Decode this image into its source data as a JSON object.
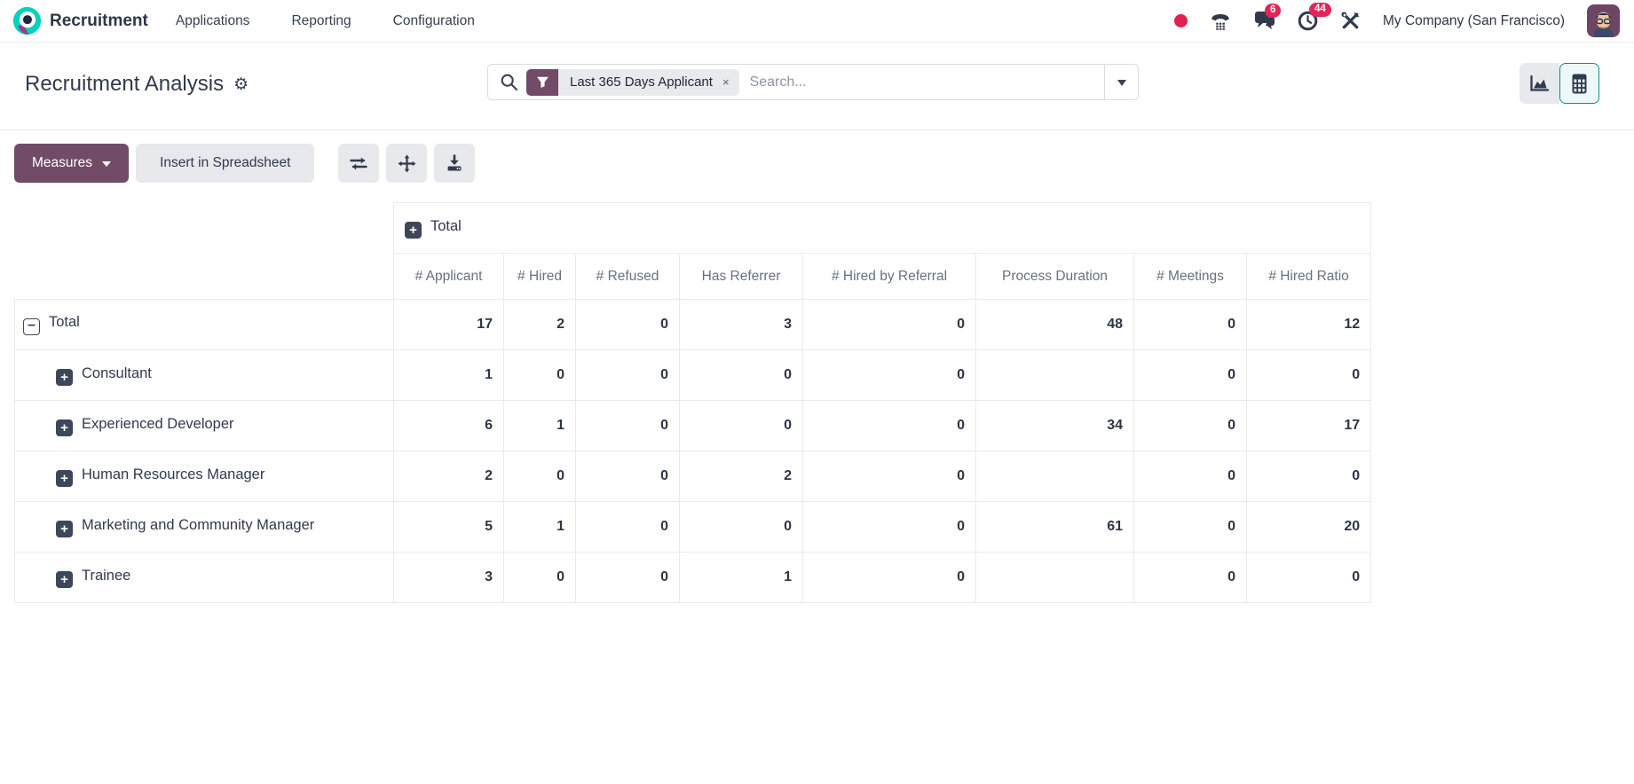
{
  "navbar": {
    "app_name": "Recruitment",
    "menu_items": [
      "Applications",
      "Reporting",
      "Configuration"
    ],
    "systray": {
      "icons": [
        "record-dot",
        "phone-icon",
        "chat-icon",
        "clock-activity-icon",
        "tools-icon"
      ],
      "chat_badge": "6",
      "activity_badge": "44",
      "company": "My Company (San Francisco)",
      "avatar": "user-avatar"
    }
  },
  "control_panel": {
    "title": "Recruitment Analysis",
    "title_icon": "settings-gear-icon",
    "search": {
      "icon": "search-icon",
      "facet_icon": "filter-funnel-icon",
      "facet_label": "Last 365 Days Applicant",
      "facet_remove": "×",
      "placeholder": "Search...",
      "expand_icon": "chevron-down-icon"
    },
    "view_switcher": [
      {
        "name": "graph-view",
        "icon": "area-chart-icon",
        "active": false
      },
      {
        "name": "pivot-view",
        "icon": "pivot-grid-icon",
        "active": true
      }
    ]
  },
  "toolbar": {
    "measures_label": "Measures",
    "insert_label": "Insert in Spreadsheet",
    "icon_buttons": [
      "flip-axis-icon",
      "expand-all-icon",
      "download-icon"
    ]
  },
  "pivot": {
    "col_group_header": "Total",
    "columns": [
      "# Applicant",
      "# Hired",
      "# Refused",
      "Has Referrer",
      "# Hired by Referral",
      "Process Duration",
      "# Meetings",
      "# Hired Ratio"
    ],
    "rows": [
      {
        "label": "Total",
        "level": 0,
        "expanded": true,
        "values": [
          "17",
          "2",
          "0",
          "3",
          "0",
          "48",
          "0",
          "12"
        ]
      },
      {
        "label": "Consultant",
        "level": 1,
        "expanded": false,
        "values": [
          "1",
          "0",
          "0",
          "0",
          "0",
          "",
          "0",
          "0"
        ]
      },
      {
        "label": "Experienced Developer",
        "level": 1,
        "expanded": false,
        "values": [
          "6",
          "1",
          "0",
          "0",
          "0",
          "34",
          "0",
          "17"
        ]
      },
      {
        "label": "Human Resources Manager",
        "level": 1,
        "expanded": false,
        "values": [
          "2",
          "0",
          "0",
          "2",
          "0",
          "",
          "0",
          "0"
        ]
      },
      {
        "label": "Marketing and Community Manager",
        "level": 1,
        "expanded": false,
        "values": [
          "5",
          "1",
          "0",
          "0",
          "0",
          "61",
          "0",
          "20"
        ]
      },
      {
        "label": "Trainee",
        "level": 1,
        "expanded": false,
        "values": [
          "3",
          "0",
          "0",
          "1",
          "0",
          "",
          "0",
          "0"
        ]
      }
    ]
  },
  "colors": {
    "primary_purple": "#714B67",
    "accent_teal": "#0E8E93",
    "badge_red": "#E0265A",
    "header_text": "#69707F",
    "border": "#E9EAEC"
  }
}
